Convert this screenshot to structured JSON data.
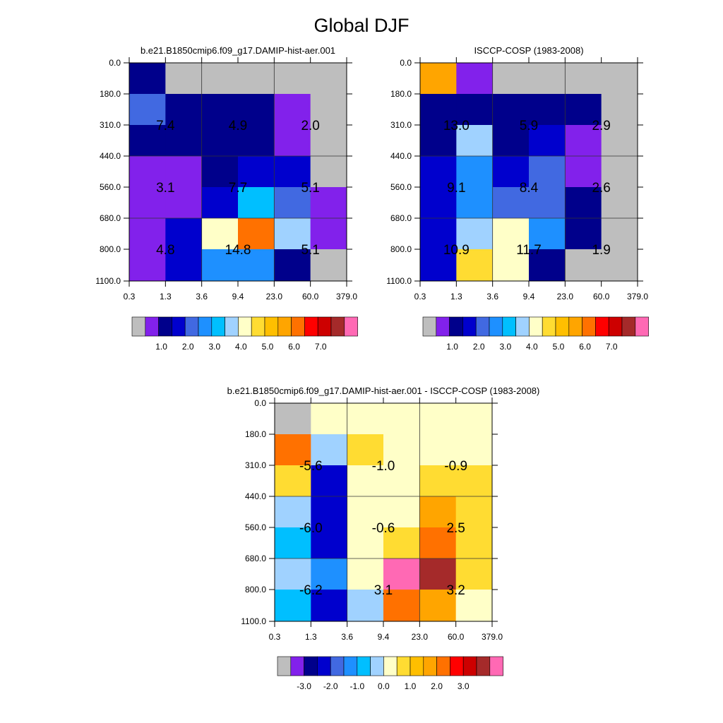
{
  "title": "Global DJF",
  "chart_data": [
    {
      "type": "heatmap",
      "title": "b.e21.B1850cmip6.f09_g17.DAMIP-hist-aer.001",
      "x_ticks": [
        "0.3",
        "1.3",
        "3.6",
        "9.4",
        "23.0",
        "60.0",
        "379.0"
      ],
      "y_ticks": [
        "0.0",
        "180.0",
        "310.0",
        "440.0",
        "560.0",
        "680.0",
        "800.0",
        "1100.0"
      ],
      "annotations": [
        {
          "col": 1,
          "row": 1,
          "text": "7.4"
        },
        {
          "col": 3,
          "row": 1,
          "text": "4.9"
        },
        {
          "col": 5,
          "row": 1,
          "text": "2.0"
        },
        {
          "col": 1,
          "row": 3,
          "text": "3.1"
        },
        {
          "col": 3,
          "row": 3,
          "text": "7.7"
        },
        {
          "col": 5,
          "row": 3,
          "text": "5.1"
        },
        {
          "col": 1,
          "row": 5,
          "text": "4.8"
        },
        {
          "col": 3,
          "row": 5,
          "text": "14.8"
        },
        {
          "col": 5,
          "row": 5,
          "text": "5.1"
        }
      ],
      "colorbar_labels": [
        "1.0",
        "2.0",
        "3.0",
        "4.0",
        "5.0",
        "6.0",
        "7.0"
      ],
      "cells": [
        [
          2,
          0,
          0,
          0,
          0,
          0
        ],
        [
          4,
          2,
          2,
          2,
          1,
          0
        ],
        [
          2,
          2,
          2,
          2,
          1,
          0
        ],
        [
          1,
          1,
          2,
          3,
          3,
          0
        ],
        [
          1,
          1,
          3,
          6,
          4,
          1
        ],
        [
          1,
          3,
          8,
          12,
          7,
          1
        ],
        [
          1,
          3,
          5,
          5,
          2,
          0
        ]
      ]
    },
    {
      "type": "heatmap",
      "title": "ISCCP-COSP (1983-2008)",
      "x_ticks": [
        "0.3",
        "1.3",
        "3.6",
        "9.4",
        "23.0",
        "60.0",
        "379.0"
      ],
      "y_ticks": [
        "0.0",
        "180.0",
        "310.0",
        "440.0",
        "560.0",
        "680.0",
        "800.0",
        "1100.0"
      ],
      "annotations": [
        {
          "col": 1,
          "row": 1,
          "text": "13.0"
        },
        {
          "col": 3,
          "row": 1,
          "text": "5.9"
        },
        {
          "col": 5,
          "row": 1,
          "text": "2.9"
        },
        {
          "col": 1,
          "row": 3,
          "text": "9.1"
        },
        {
          "col": 3,
          "row": 3,
          "text": "8.4"
        },
        {
          "col": 5,
          "row": 3,
          "text": "2.6"
        },
        {
          "col": 1,
          "row": 5,
          "text": "10.9"
        },
        {
          "col": 3,
          "row": 5,
          "text": "11.7"
        },
        {
          "col": 5,
          "row": 5,
          "text": "1.9"
        }
      ],
      "colorbar_labels": [
        "1.0",
        "2.0",
        "3.0",
        "4.0",
        "5.0",
        "6.0",
        "7.0"
      ],
      "cells": [
        [
          11,
          1,
          0,
          0,
          0,
          0
        ],
        [
          2,
          2,
          2,
          2,
          2,
          0
        ],
        [
          2,
          7,
          2,
          3,
          1,
          0
        ],
        [
          3,
          5,
          3,
          4,
          1,
          0
        ],
        [
          3,
          5,
          4,
          4,
          2,
          0
        ],
        [
          3,
          7,
          8,
          5,
          2,
          0
        ],
        [
          3,
          9,
          8,
          2,
          0,
          0
        ]
      ]
    },
    {
      "type": "heatmap",
      "title": "b.e21.B1850cmip6.f09_g17.DAMIP-hist-aer.001 - ISCCP-COSP (1983-2008)",
      "x_ticks": [
        "0.3",
        "1.3",
        "3.6",
        "9.4",
        "23.0",
        "60.0",
        "379.0"
      ],
      "y_ticks": [
        "0.0",
        "180.0",
        "310.0",
        "440.0",
        "560.0",
        "680.0",
        "800.0",
        "1100.0"
      ],
      "annotations": [
        {
          "col": 1,
          "row": 1,
          "text": "-5.6"
        },
        {
          "col": 3,
          "row": 1,
          "text": "-1.0"
        },
        {
          "col": 5,
          "row": 1,
          "text": "-0.9"
        },
        {
          "col": 1,
          "row": 3,
          "text": "-6.0"
        },
        {
          "col": 3,
          "row": 3,
          "text": "-0.6"
        },
        {
          "col": 5,
          "row": 3,
          "text": "2.5"
        },
        {
          "col": 1,
          "row": 5,
          "text": "-6.2"
        },
        {
          "col": 3,
          "row": 5,
          "text": "3.1"
        },
        {
          "col": 5,
          "row": 5,
          "text": "3.2"
        }
      ],
      "colorbar_labels": [
        "-3.0",
        "-2.0",
        "-1.0",
        "0.0",
        "1.0",
        "2.0",
        "3.0"
      ],
      "cells": [
        [
          0,
          8,
          8,
          8,
          8,
          8
        ],
        [
          12,
          7,
          9,
          8,
          8,
          8
        ],
        [
          9,
          3,
          8,
          8,
          9,
          9
        ],
        [
          7,
          3,
          8,
          8,
          11,
          9
        ],
        [
          6,
          3,
          8,
          9,
          12,
          9
        ],
        [
          7,
          5,
          8,
          16,
          15,
          9
        ],
        [
          6,
          3,
          7,
          12,
          11,
          8
        ]
      ]
    }
  ],
  "colors": {
    "palette": [
      "#BEBEBE",
      "#8221EB",
      "#00008B",
      "#0000CD",
      "#4169E1",
      "#1E90FF",
      "#00BFFF",
      "#A0D2FF",
      "#FFFFC8",
      "#FFDC32",
      "#FFBF00",
      "#FFA500",
      "#FF7100",
      "#FF0000",
      "#CD0000",
      "#A52A2A",
      "#FF69B4"
    ]
  }
}
